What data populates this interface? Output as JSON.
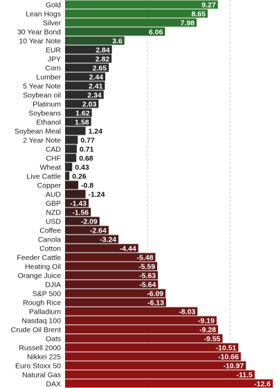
{
  "chart_data": {
    "type": "bar",
    "orientation": "horizontal",
    "title": "",
    "xlabel": "",
    "ylabel": "",
    "grid": "vertical dashed",
    "categories": [
      "Gold",
      "Lean Hogs",
      "Silver",
      "30 Year Bond",
      "10 Year Note",
      "EUR",
      "JPY",
      "Corn",
      "Lumber",
      "5 Year Note",
      "Soybean oil",
      "Platinum",
      "Soybeans",
      "Ethanol",
      "Soybean Meal",
      "2 Year Note",
      "CAD",
      "CHF",
      "Wheat",
      "Live Cattle",
      "Copper",
      "AUD",
      "GBP",
      "NZD",
      "USD",
      "Coffee",
      "Canola",
      "Cotton",
      "Feeder Cattle",
      "Heating Oil",
      "Orange Juice",
      "DJIA",
      "S&P 500",
      "Rough Rice",
      "Palladium",
      "Nasdaq 100",
      "Crude Oil Brent",
      "Oats",
      "Russell 2000",
      "Nikkei 225",
      "Euro Stoxx 50",
      "Natural Gas",
      "DAX"
    ],
    "values": [
      9.27,
      8.65,
      7.98,
      6.06,
      3.6,
      2.84,
      2.82,
      2.65,
      2.44,
      2.41,
      2.34,
      2.03,
      1.62,
      1.58,
      1.24,
      0.77,
      0.71,
      0.68,
      0.43,
      0.26,
      -0.8,
      -1.24,
      -1.43,
      -1.56,
      -2.09,
      -2.64,
      -3.24,
      -4.44,
      -5.48,
      -5.59,
      -5.63,
      -5.64,
      -6.09,
      -6.13,
      -8.03,
      -9.19,
      -9.28,
      -9.55,
      -10.51,
      -10.66,
      -10.97,
      -11.5,
      -12.6
    ],
    "value_labels": [
      "9.27",
      "8.65",
      "7.98",
      "6.06",
      "3.6",
      "2.84",
      "2.82",
      "2.65",
      "2.44",
      "2.41",
      "2.34",
      "2.03",
      "1.62",
      "1.58",
      "1.24",
      "0.77",
      "0.71",
      "0.68",
      "0.43",
      "0.26",
      "-0.8",
      "-1.24",
      "-1.43",
      "-1.56",
      "-2.09",
      "-2.64",
      "-3.24",
      "-4.44",
      "-5.48",
      "-5.59",
      "-5.63",
      "-5.64",
      "-6.09",
      "-6.13",
      "-8.03",
      "-9.19",
      "-9.28",
      "-9.55",
      "-10.51",
      "-10.66",
      "-10.97",
      "-11.5",
      "-12.6"
    ],
    "xlim": [
      -13.0,
      9.4
    ],
    "colors": {
      "positive_strong": "#2e7d32",
      "positive_weak": "#2b2b2b",
      "negative_weak": "#2f1e1e",
      "negative_strong": "#9b1111",
      "label_dark": "#111111",
      "label_light": "#ffffff",
      "grid": "#cccccc"
    }
  }
}
